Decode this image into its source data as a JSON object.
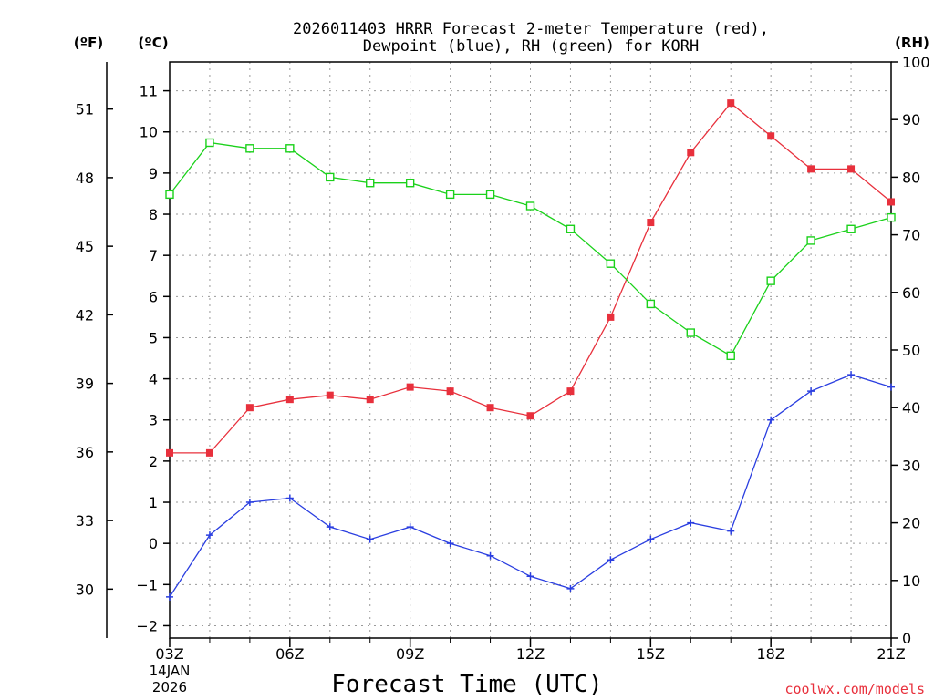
{
  "chart_data": {
    "type": "line",
    "title_line1": "2026011403 HRRR Forecast 2-meter Temperature (red),",
    "title_line2": "Dewpoint (blue), RH (green) for KORH",
    "xlabel": "Forecast Time (UTC)",
    "credit": "coolwx.com/models",
    "units": {
      "fahrenheit": "(ºF)",
      "celsius": "(ºC)",
      "rh": "(RH)"
    },
    "x_ticks": [
      "03Z",
      "06Z",
      "09Z",
      "12Z",
      "15Z",
      "18Z",
      "21Z"
    ],
    "x_date_lines": [
      "14JAN",
      "2026"
    ],
    "x_hours": [
      3,
      4,
      5,
      6,
      7,
      8,
      9,
      10,
      11,
      12,
      13,
      14,
      15,
      16,
      17,
      18,
      19,
      20,
      21
    ],
    "x_range": [
      3,
      21
    ],
    "left_axis": {
      "unit": "°C",
      "range": [
        -2.3,
        11.7
      ],
      "ticks": [
        -2,
        -1,
        0,
        1,
        2,
        3,
        4,
        5,
        6,
        7,
        8,
        9,
        10,
        11
      ]
    },
    "fahrenheit_axis": {
      "unit": "°F",
      "ticks": [
        30,
        33,
        36,
        39,
        42,
        45,
        48,
        51
      ]
    },
    "right_axis": {
      "unit": "RH %",
      "range": [
        0,
        100
      ],
      "ticks": [
        0,
        10,
        20,
        30,
        40,
        50,
        60,
        70,
        80,
        90,
        100
      ]
    },
    "grid": true,
    "series": [
      {
        "id": "temperature",
        "color": "#e8303c",
        "marker": "filled-square",
        "axis": "left",
        "values": [
          2.2,
          2.2,
          3.3,
          3.5,
          3.6,
          3.5,
          3.8,
          3.7,
          3.3,
          3.1,
          3.7,
          5.5,
          7.8,
          9.5,
          10.7,
          9.9,
          9.1,
          9.1,
          8.3
        ]
      },
      {
        "id": "dewpoint",
        "color": "#2a3ee0",
        "marker": "plus",
        "axis": "left",
        "values": [
          -1.3,
          0.2,
          1.0,
          1.1,
          0.4,
          0.1,
          0.4,
          0.0,
          -0.3,
          -0.8,
          -1.1,
          -0.4,
          0.1,
          0.5,
          0.3,
          3.0,
          3.7,
          4.1,
          3.8
        ]
      },
      {
        "id": "rh",
        "color": "#1ad11a",
        "marker": "open-square",
        "axis": "right",
        "values": [
          77,
          86,
          85,
          85,
          80,
          79,
          79,
          77,
          77,
          75,
          71,
          65,
          58,
          53,
          49,
          62,
          69,
          71,
          73
        ]
      }
    ]
  }
}
